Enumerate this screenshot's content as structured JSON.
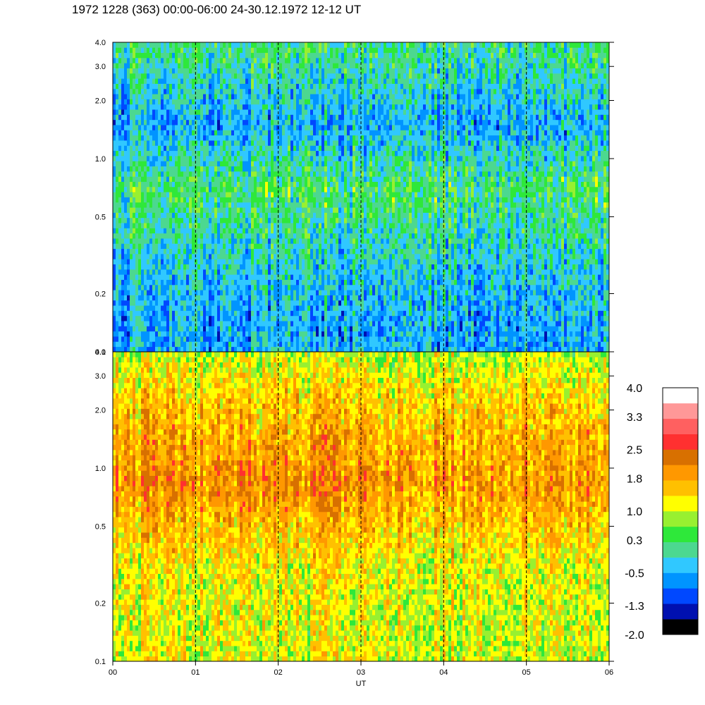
{
  "title": "1972 1228 (363) 00:00-06:00 24-30.12.1972  12-12 UT",
  "chart_data": [
    {
      "type": "heatmap",
      "panel": "upper",
      "ylim": [
        0.1,
        4.0
      ],
      "yscale": "log",
      "yticks": [
        {
          "value": 0.1,
          "label": "0.1"
        },
        {
          "value": 0.2,
          "label": "0.2"
        },
        {
          "value": 0.5,
          "label": "0.5"
        },
        {
          "value": 1.0,
          "label": "1.0"
        },
        {
          "value": 2.0,
          "label": "2.0"
        },
        {
          "value": 3.0,
          "label": "3.0"
        },
        {
          "value": 4.0,
          "label": "4.0"
        }
      ],
      "dominant_level_by_frequency": [
        {
          "frequency": 0.15,
          "level": -0.5
        },
        {
          "frequency": 0.3,
          "level": -0.2
        },
        {
          "frequency": 0.7,
          "level": 0.3
        },
        {
          "frequency": 1.5,
          "level": -0.5
        },
        {
          "frequency": 3.5,
          "level": 0.1
        }
      ]
    },
    {
      "type": "heatmap",
      "panel": "lower",
      "ylim": [
        0.1,
        4.0
      ],
      "yscale": "log",
      "yticks": [
        {
          "value": 0.1,
          "label": "0.1"
        },
        {
          "value": 0.2,
          "label": "0.2"
        },
        {
          "value": 0.5,
          "label": "0.5"
        },
        {
          "value": 1.0,
          "label": "1.0"
        },
        {
          "value": 2.0,
          "label": "2.0"
        },
        {
          "value": 3.0,
          "label": "3.0"
        },
        {
          "value": 4.0,
          "label": "4.0"
        }
      ],
      "dominant_level_by_frequency": [
        {
          "frequency": 0.15,
          "level": 1.1
        },
        {
          "frequency": 0.3,
          "level": 1.2
        },
        {
          "frequency": 0.85,
          "level": 2.0
        },
        {
          "frequency": 2.0,
          "level": 1.6
        },
        {
          "frequency": 3.8,
          "level": 1.0
        }
      ]
    }
  ],
  "xaxis": {
    "xlabel": "UT",
    "xlim": [
      0,
      6
    ],
    "ticks": [
      {
        "value": 0,
        "label": "00"
      },
      {
        "value": 1,
        "label": "01"
      },
      {
        "value": 2,
        "label": "02"
      },
      {
        "value": 3,
        "label": "03"
      },
      {
        "value": 4,
        "label": "04"
      },
      {
        "value": 5,
        "label": "05"
      },
      {
        "value": 6,
        "label": "06"
      }
    ],
    "dashed_gridlines_at": [
      1,
      2,
      3,
      4,
      5
    ]
  },
  "colorbar": {
    "range": [
      -2.0,
      4.0
    ],
    "labels": [
      "4.0",
      "3.3",
      "2.5",
      "1.8",
      "1.0",
      "0.3",
      "-0.5",
      "-1.3",
      "-2.0"
    ],
    "colors": [
      "#000000",
      "#0010b0",
      "#0048ff",
      "#0094ff",
      "#30c8ff",
      "#4cd890",
      "#2ee83a",
      "#98f030",
      "#ffff00",
      "#ffc000",
      "#ff9800",
      "#d87000",
      "#ff3030",
      "#ff6060",
      "#ff9898",
      "#ffffff"
    ]
  }
}
